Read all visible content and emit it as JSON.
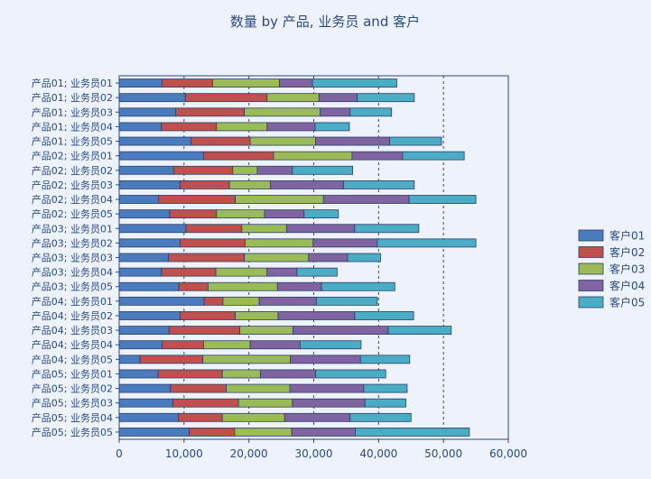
{
  "chart_data": {
    "type": "bar",
    "orientation": "horizontal",
    "stacked": true,
    "title": "数量 by 产品, 业务员 and 客户",
    "xlabel": "",
    "ylabel": "",
    "xlim": [
      0,
      60000
    ],
    "xticks": [
      0,
      10000,
      20000,
      30000,
      40000,
      50000,
      60000
    ],
    "xtick_labels": [
      "0",
      "10,000",
      "20,000",
      "30,000",
      "40,000",
      "50,000",
      "60,000"
    ],
    "grid": "vertical dashed",
    "legend_position": "right",
    "categories": [
      "产品01; 业务员01",
      "产品01; 业务员02",
      "产品01; 业务员03",
      "产品01; 业务员04",
      "产品01; 业务员05",
      "产品02; 业务员01",
      "产品02; 业务员02",
      "产品02; 业务员03",
      "产品02; 业务员04",
      "产品02; 业务员05",
      "产品03; 业务员01",
      "产品03; 业务员02",
      "产品03; 业务员03",
      "产品03; 业务员04",
      "产品03; 业务员05",
      "产品04; 业务员01",
      "产品04; 业务员02",
      "产品04; 业务员03",
      "产品04; 业务员04",
      "产品04; 业务员05",
      "产品05; 业务员01",
      "产品05; 业务员02",
      "产品05; 业务员03",
      "产品05; 业务员04",
      "产品05; 业务员05"
    ],
    "series": [
      {
        "name": "客户01",
        "color": "#4a7bbf",
        "values": [
          6600,
          10200,
          8700,
          6500,
          11100,
          13000,
          8400,
          9400,
          6100,
          7800,
          10300,
          9400,
          7600,
          6500,
          9200,
          13100,
          9400,
          7700,
          6600,
          3200,
          6000,
          7900,
          8300,
          9100,
          10800
        ]
      },
      {
        "name": "客户02",
        "color": "#c0504d",
        "values": [
          7800,
          12600,
          10600,
          8500,
          9100,
          10800,
          9100,
          7600,
          11800,
          7200,
          8600,
          10000,
          11700,
          8400,
          4500,
          2900,
          8500,
          10900,
          6400,
          9700,
          9900,
          8600,
          10100,
          6800,
          7000
        ]
      },
      {
        "name": "客户03",
        "color": "#9bbb59",
        "values": [
          10300,
          8000,
          11700,
          7800,
          10100,
          12100,
          3800,
          6300,
          13600,
          7400,
          6900,
          10500,
          9900,
          7900,
          10700,
          5600,
          6600,
          8200,
          7200,
          13500,
          5900,
          9800,
          8300,
          9600,
          8800
        ]
      },
      {
        "name": "客户04",
        "color": "#8064a2",
        "values": [
          5100,
          5900,
          4600,
          7400,
          11400,
          7800,
          5400,
          11300,
          13200,
          6100,
          10500,
          9900,
          6000,
          4600,
          6800,
          8800,
          11800,
          14700,
          7700,
          10800,
          8500,
          11400,
          11200,
          10100,
          9800
        ]
      },
      {
        "name": "客户05",
        "color": "#4bacc6",
        "values": [
          13000,
          8800,
          6400,
          5300,
          8000,
          9500,
          9300,
          10900,
          10300,
          5300,
          9900,
          15200,
          5100,
          6200,
          11300,
          9400,
          9100,
          9700,
          9400,
          7600,
          10800,
          6700,
          6300,
          9400,
          17600
        ]
      }
    ]
  }
}
